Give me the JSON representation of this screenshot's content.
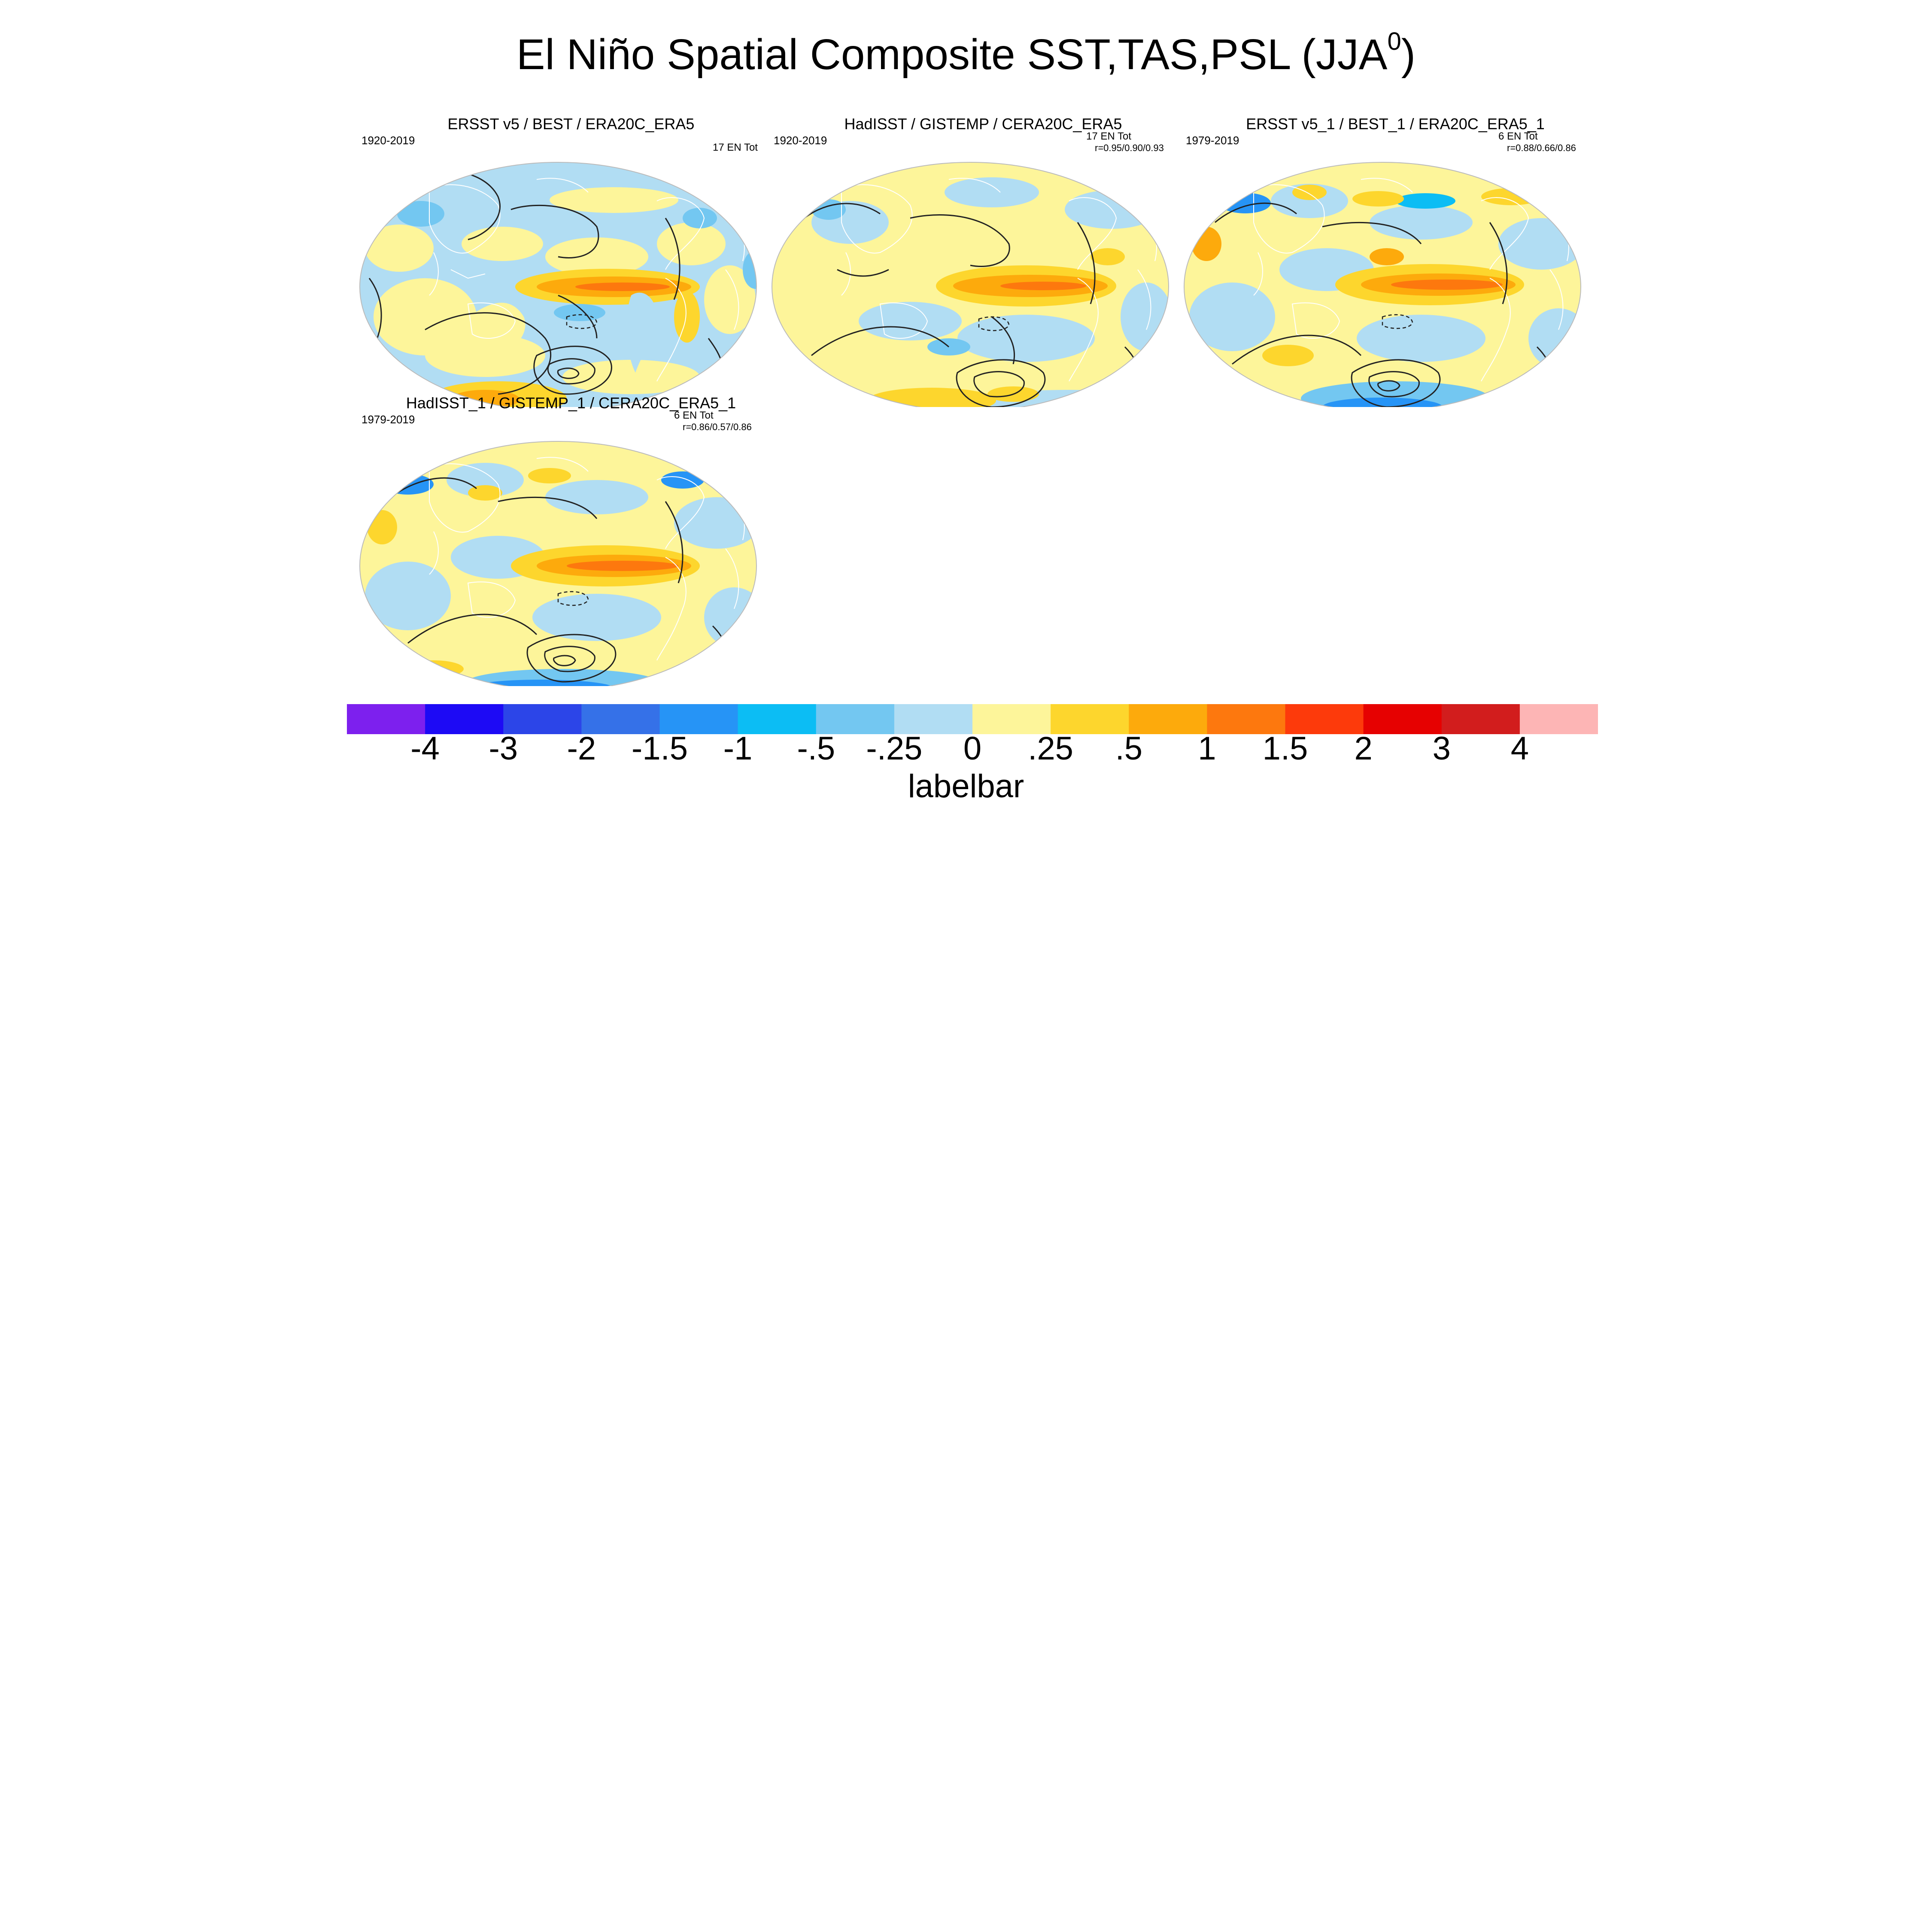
{
  "title": {
    "main": "El Niño Spatial Composite SST,TAS,PSL (JJA",
    "superscript": "0",
    "close": ")"
  },
  "panels": [
    {
      "title": "ERSST v5 / BEST / ERA20C_ERA5",
      "years": "1920-2019",
      "count": "17 EN Tot",
      "correlations": ""
    },
    {
      "title": "HadISST / GISTEMP / CERA20C_ERA5",
      "years": "1920-2019",
      "count": "17 EN Tot",
      "correlations": "r=0.95/0.90/0.93"
    },
    {
      "title": "ERSST v5_1 / BEST_1 / ERA20C_ERA5_1",
      "years": "1979-2019",
      "count": "6 EN Tot",
      "correlations": "r=0.88/0.66/0.86"
    },
    {
      "title": "HadISST_1 / GISTEMP_1 / CERA20C_ERA5_1",
      "years": "1979-2019",
      "count": "6 EN Tot",
      "correlations": "r=0.86/0.57/0.86"
    }
  ],
  "labelbar": {
    "caption": "labelbar",
    "colors": [
      "#7d20ee",
      "#1d0af5",
      "#2c45e8",
      "#3571e8",
      "#2694f6",
      "#0cbdf4",
      "#73c7f1",
      "#b1ddf3",
      "#fdf59a",
      "#fdd62d",
      "#fdaa0c",
      "#fd780e",
      "#fd3a0b",
      "#e60101",
      "#d21d1d",
      "#fdb5b5"
    ],
    "tick_labels": [
      "-4",
      "-3",
      "-2",
      "-1.5",
      "-1",
      "-.5",
      "-.25",
      "0",
      ".25",
      ".5",
      "1",
      "1.5",
      "2",
      "3",
      "4"
    ]
  }
}
